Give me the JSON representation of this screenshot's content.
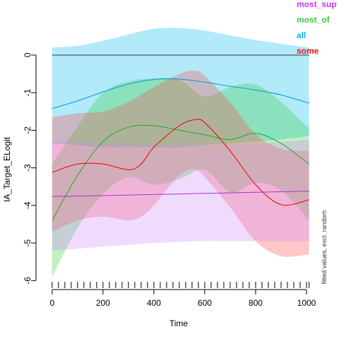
{
  "chart_data": {
    "type": "line",
    "xlabel": "Time",
    "ylabel": "IA_Target_ELogit",
    "side_note": "fitted values, excl. random",
    "xlim": [
      -30,
      1025
    ],
    "ylim": [
      -6.05,
      0.3
    ],
    "xticks": [
      0,
      200,
      400,
      600,
      800,
      1000
    ],
    "yticks": [
      0,
      -1,
      -2,
      -3,
      -4,
      -5,
      -6
    ],
    "reference_line_y": 0,
    "rug_x": [
      0,
      25,
      50,
      75,
      100,
      125,
      150,
      175,
      200,
      225,
      250,
      275,
      300,
      325,
      350,
      375,
      400,
      425,
      450,
      475,
      500,
      525,
      550,
      575,
      600,
      625,
      650,
      675,
      700,
      725,
      750,
      775,
      800,
      825,
      850,
      875,
      900,
      925,
      950,
      975,
      1000,
      1010
    ],
    "legend": [
      {
        "label": "most_sup",
        "color": "#cc33ff"
      },
      {
        "label": "most_of",
        "color": "#33cc33"
      },
      {
        "label": "all",
        "color": "#00bbee"
      },
      {
        "label": "some",
        "color": "#ee1111"
      }
    ],
    "series": [
      {
        "name": "all",
        "line_color": "#0099dd",
        "band_color": "#00bbee",
        "x": [
          0,
          100,
          200,
          300,
          400,
          500,
          600,
          700,
          800,
          900,
          1010
        ],
        "y": [
          -1.42,
          -1.22,
          -0.98,
          -0.77,
          -0.65,
          -0.64,
          -0.72,
          -0.83,
          -0.93,
          -1.06,
          -1.28
        ],
        "upper": [
          0.2,
          0.25,
          0.38,
          0.55,
          0.7,
          0.72,
          0.65,
          0.52,
          0.4,
          0.3,
          0.2
        ],
        "lower": [
          -2.35,
          -2.4,
          -2.45,
          -2.45,
          -2.45,
          -2.45,
          -2.4,
          -2.35,
          -2.3,
          -2.25,
          -2.15
        ]
      },
      {
        "name": "most_of",
        "line_color": "#22aa22",
        "band_color": "#33cc33",
        "x": [
          0,
          100,
          200,
          300,
          400,
          500,
          600,
          700,
          800,
          900,
          1010
        ],
        "y": [
          -4.4,
          -3.2,
          -2.3,
          -1.92,
          -1.88,
          -2.0,
          -2.12,
          -2.25,
          -2.08,
          -2.35,
          -2.9
        ],
        "upper": [
          -2.9,
          -1.9,
          -1.0,
          -0.7,
          -0.62,
          -0.65,
          -1.1,
          -0.85,
          -0.78,
          -1.25,
          -1.95
        ],
        "lower": [
          -5.9,
          -4.6,
          -3.7,
          -3.25,
          -3.45,
          -3.3,
          -3.05,
          -3.65,
          -3.4,
          -3.6,
          -4.4
        ]
      },
      {
        "name": "some",
        "line_color": "#ee0000",
        "band_color": "#ff4444",
        "x": [
          0,
          100,
          200,
          300,
          350,
          400,
          500,
          560,
          600,
          700,
          800,
          900,
          1010
        ],
        "y": [
          -3.12,
          -2.9,
          -2.9,
          -3.05,
          -2.9,
          -2.45,
          -1.88,
          -1.72,
          -1.8,
          -2.55,
          -3.45,
          -3.98,
          -3.85
        ],
        "upper": [
          -1.65,
          -1.55,
          -1.5,
          -1.25,
          -1.05,
          -0.85,
          -0.5,
          -0.42,
          -0.55,
          -1.25,
          -2.1,
          -2.5,
          -2.55
        ],
        "lower": [
          -4.7,
          -4.4,
          -4.3,
          -4.4,
          -4.3,
          -4.0,
          -3.2,
          -3.05,
          -3.25,
          -4.05,
          -4.95,
          -5.35,
          -5.3
        ]
      },
      {
        "name": "most_sup",
        "line_color": "#aa33cc",
        "band_color": "#cc88ff",
        "x": [
          0,
          200,
          400,
          600,
          800,
          1010
        ],
        "y": [
          -3.76,
          -3.74,
          -3.71,
          -3.68,
          -3.65,
          -3.62
        ],
        "upper": [
          -2.3,
          -2.35,
          -2.4,
          -2.4,
          -2.35,
          -2.25
        ],
        "lower": [
          -5.2,
          -5.1,
          -5.0,
          -4.95,
          -4.95,
          -4.95
        ]
      }
    ]
  }
}
